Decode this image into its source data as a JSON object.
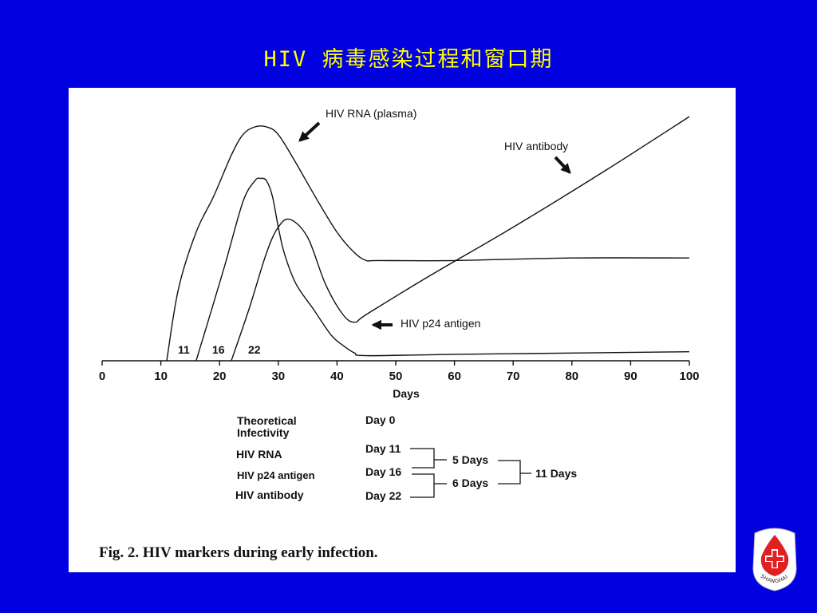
{
  "slide": {
    "title": "HIV 病毒感染过程和窗口期"
  },
  "colors": {
    "background": "#0000e0",
    "title": "#ffff00",
    "panel": "#ffffff",
    "ink": "#111111",
    "logo_red": "#e02020"
  },
  "chart_data": {
    "type": "line",
    "title": "",
    "xlabel": "Days",
    "ylabel": "",
    "xlim": [
      0,
      100
    ],
    "ylim": [
      0,
      100
    ],
    "xticks": [
      "0",
      "10",
      "20",
      "30",
      "40",
      "50",
      "60",
      "70",
      "80",
      "90",
      "100"
    ],
    "grid": false,
    "series": [
      {
        "name": "HIV RNA (plasma)",
        "x": [
          11,
          13,
          16,
          19,
          22,
          24,
          26,
          28,
          30,
          33,
          36,
          40,
          43,
          45,
          47,
          60,
          80,
          100
        ],
        "y": [
          0,
          28,
          50,
          64,
          80,
          88,
          91,
          91,
          88,
          77,
          65,
          50,
          42,
          39,
          39,
          39,
          40,
          40
        ]
      },
      {
        "name": "HIV p24 antigen",
        "x": [
          16,
          18,
          21,
          24,
          26,
          27,
          28,
          29,
          30,
          31,
          33,
          36,
          39,
          41,
          43,
          45
        ],
        "y": [
          0,
          15,
          38,
          62,
          70,
          71,
          70,
          64,
          52,
          42,
          30,
          20,
          10,
          6,
          3,
          2
        ],
        "tail": {
          "x": [
            45,
            60,
            80,
            100
          ],
          "y": [
            2,
            2.5,
            3,
            3.5
          ]
        }
      },
      {
        "name": "HIV antibody",
        "x": [
          22,
          25,
          28,
          30,
          32,
          35,
          38,
          41,
          43,
          45,
          55,
          70,
          85,
          100
        ],
        "y": [
          0,
          20,
          42,
          52,
          55,
          48,
          30,
          18,
          15,
          18,
          32,
          52,
          73,
          95
        ]
      }
    ],
    "annotations": [
      {
        "text": "HIV RNA  (plasma)",
        "points_to": "HIV RNA (plasma)"
      },
      {
        "text": "HIV  antibody",
        "points_to": "HIV antibody"
      },
      {
        "text": "HIV  p24  antigen",
        "points_to": "HIV p24 antigen"
      },
      {
        "text": "11",
        "at_day": 11
      },
      {
        "text": "16",
        "at_day": 16
      },
      {
        "text": "22",
        "at_day": 22
      }
    ]
  },
  "timeline": {
    "rows": [
      {
        "marker": "Theoretical Infectivity",
        "marker_line1": "Theoretical",
        "marker_line2": "Infectivity",
        "day": "Day  0"
      },
      {
        "marker": "HIV RNA",
        "day": "Day  11"
      },
      {
        "marker": "HIV  p24  antigen",
        "day": "Day  16"
      },
      {
        "marker": "HIV  antibody",
        "day": "Day  22"
      }
    ],
    "intervals": [
      {
        "label": "5  Days",
        "from": "Day 11",
        "to": "Day 16"
      },
      {
        "label": "6  Days",
        "from": "Day 16",
        "to": "Day 22"
      }
    ],
    "total": "11  Days"
  },
  "caption": "Fig. 2. HIV markers during early infection.",
  "logo": {
    "text": "SHANGHAI",
    "icon": "red-cross-blood-drop-icon"
  }
}
